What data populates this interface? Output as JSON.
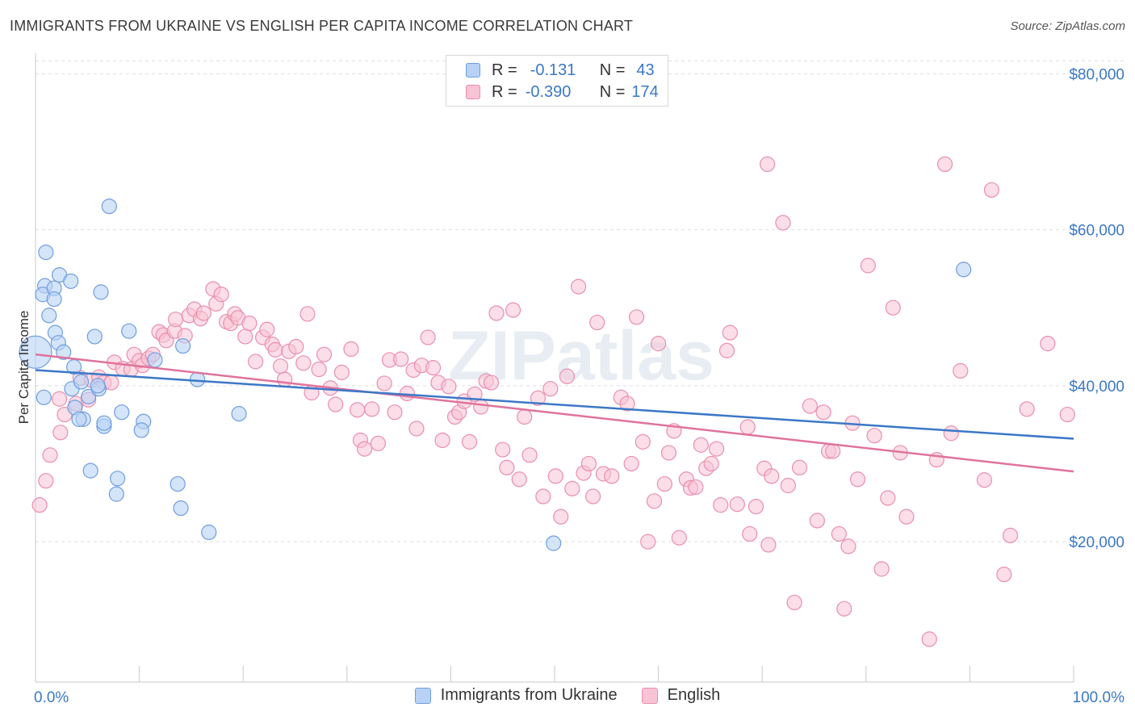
{
  "title": "IMMIGRANTS FROM UKRAINE VS ENGLISH PER CAPITA INCOME CORRELATION CHART",
  "source": "Source: ZipAtlas.com",
  "watermark": "ZIPatlas",
  "legend": {
    "r_label": "R =",
    "n_label": "N =",
    "rows": [
      {
        "name": "Immigrants from Ukraine",
        "r": "-0.131",
        "n": "43",
        "fill": "#b7d2f5",
        "stroke": "#6f9ee0"
      },
      {
        "name": "English",
        "r": "-0.390",
        "n": "174",
        "fill": "#f8c3d4",
        "stroke": "#ea8fae"
      }
    ]
  },
  "chart_data": {
    "type": "scatter",
    "title": "IMMIGRANTS FROM UKRAINE VS ENGLISH PER CAPITA INCOME CORRELATION CHART",
    "xlabel": "",
    "ylabel": "Per Capita Income",
    "xlim": [
      0,
      100
    ],
    "ylim": [
      2000,
      82000
    ],
    "x_tick_labels": [
      "0.0%",
      "100.0%"
    ],
    "y_ticks": [
      20000,
      40000,
      60000,
      80000
    ],
    "y_tick_labels": [
      "$20,000",
      "$40,000",
      "$60,000",
      "$80,000"
    ],
    "grid": true,
    "legend_position": "top-center",
    "colors": {
      "ukraine_fill": "#b7d2f5",
      "ukraine_stroke": "#6f9ee0",
      "ukraine_line": "#3b78c7",
      "english_fill": "#f8c3d4",
      "english_stroke": "#ea8fae",
      "english_line": "#e0739c",
      "tick_label": "#3b78c7"
    },
    "series": [
      {
        "name": "Immigrants from Ukraine",
        "trend": {
          "x": [
            0,
            100
          ],
          "y": [
            42000,
            33200
          ]
        },
        "points": [
          [
            0.0,
            44300
          ],
          [
            1.0,
            57100
          ],
          [
            0.9,
            52800
          ],
          [
            0.7,
            51700
          ],
          [
            1.8,
            52500
          ],
          [
            1.8,
            51100
          ],
          [
            2.3,
            54200
          ],
          [
            3.4,
            53400
          ],
          [
            1.3,
            49000
          ],
          [
            1.9,
            46800
          ],
          [
            2.2,
            45500
          ],
          [
            2.7,
            44300
          ],
          [
            3.7,
            42400
          ],
          [
            5.7,
            46300
          ],
          [
            6.3,
            52000
          ],
          [
            9.0,
            47000
          ],
          [
            14.2,
            45100
          ],
          [
            11.5,
            43300
          ],
          [
            7.1,
            63000
          ],
          [
            3.5,
            39600
          ],
          [
            4.4,
            40500
          ],
          [
            3.8,
            37200
          ],
          [
            4.6,
            35700
          ],
          [
            4.2,
            35700
          ],
          [
            5.1,
            38600
          ],
          [
            6.1,
            39600
          ],
          [
            6.0,
            40000
          ],
          [
            8.3,
            36600
          ],
          [
            6.6,
            34800
          ],
          [
            6.6,
            35200
          ],
          [
            10.4,
            35400
          ],
          [
            10.2,
            34300
          ],
          [
            15.6,
            40800
          ],
          [
            19.6,
            36400
          ],
          [
            5.3,
            29100
          ],
          [
            7.9,
            28100
          ],
          [
            7.8,
            26100
          ],
          [
            13.7,
            27400
          ],
          [
            14.0,
            24300
          ],
          [
            16.7,
            21200
          ],
          [
            49.9,
            19800
          ],
          [
            89.4,
            54900
          ],
          [
            0.8,
            38500
          ]
        ]
      },
      {
        "name": "English",
        "trend": {
          "x": [
            0,
            100
          ],
          "y": [
            44000,
            29000
          ]
        },
        "points": [
          [
            0.4,
            24700
          ],
          [
            1.0,
            27800
          ],
          [
            1.4,
            31100
          ],
          [
            2.3,
            38300
          ],
          [
            2.4,
            34000
          ],
          [
            2.8,
            36300
          ],
          [
            3.9,
            37700
          ],
          [
            4.3,
            41000
          ],
          [
            5.1,
            38200
          ],
          [
            5.4,
            40700
          ],
          [
            6.1,
            41100
          ],
          [
            6.6,
            40400
          ],
          [
            7.3,
            40400
          ],
          [
            7.6,
            43000
          ],
          [
            8.4,
            42200
          ],
          [
            9.2,
            42100
          ],
          [
            9.5,
            44000
          ],
          [
            10.0,
            43200
          ],
          [
            10.3,
            42600
          ],
          [
            10.9,
            43500
          ],
          [
            11.3,
            44000
          ],
          [
            11.9,
            46900
          ],
          [
            12.3,
            46500
          ],
          [
            12.6,
            45800
          ],
          [
            13.4,
            47000
          ],
          [
            13.5,
            48500
          ],
          [
            14.4,
            46400
          ],
          [
            14.8,
            49000
          ],
          [
            15.3,
            49800
          ],
          [
            15.9,
            48600
          ],
          [
            16.2,
            49300
          ],
          [
            17.1,
            52400
          ],
          [
            17.4,
            50500
          ],
          [
            17.9,
            51700
          ],
          [
            18.4,
            48200
          ],
          [
            18.8,
            48000
          ],
          [
            19.2,
            49200
          ],
          [
            19.5,
            48700
          ],
          [
            20.2,
            46300
          ],
          [
            20.6,
            48000
          ],
          [
            21.2,
            43100
          ],
          [
            21.9,
            46200
          ],
          [
            22.3,
            47200
          ],
          [
            22.8,
            45300
          ],
          [
            23.1,
            44600
          ],
          [
            23.6,
            42500
          ],
          [
            24.0,
            40800
          ],
          [
            24.4,
            44400
          ],
          [
            25.1,
            45000
          ],
          [
            25.8,
            42900
          ],
          [
            26.2,
            49200
          ],
          [
            26.6,
            39100
          ],
          [
            27.3,
            42100
          ],
          [
            27.8,
            44000
          ],
          [
            28.4,
            39700
          ],
          [
            28.9,
            37600
          ],
          [
            29.5,
            41700
          ],
          [
            30.4,
            44700
          ],
          [
            31.0,
            36900
          ],
          [
            31.3,
            33000
          ],
          [
            31.7,
            31900
          ],
          [
            32.4,
            37000
          ],
          [
            33.0,
            32600
          ],
          [
            33.6,
            40300
          ],
          [
            34.1,
            43300
          ],
          [
            34.6,
            36600
          ],
          [
            35.2,
            43400
          ],
          [
            35.8,
            39000
          ],
          [
            36.4,
            42000
          ],
          [
            36.7,
            34500
          ],
          [
            37.2,
            42600
          ],
          [
            37.8,
            46200
          ],
          [
            38.3,
            42300
          ],
          [
            38.8,
            40400
          ],
          [
            39.2,
            33000
          ],
          [
            39.8,
            39900
          ],
          [
            40.4,
            36000
          ],
          [
            40.8,
            36600
          ],
          [
            41.3,
            38000
          ],
          [
            41.8,
            32800
          ],
          [
            42.3,
            38900
          ],
          [
            42.9,
            37300
          ],
          [
            43.4,
            40600
          ],
          [
            43.9,
            40400
          ],
          [
            44.4,
            49300
          ],
          [
            45.0,
            31800
          ],
          [
            45.4,
            29500
          ],
          [
            46.0,
            49700
          ],
          [
            46.6,
            28000
          ],
          [
            47.1,
            36000
          ],
          [
            47.6,
            31100
          ],
          [
            48.4,
            38400
          ],
          [
            48.9,
            25800
          ],
          [
            49.6,
            39600
          ],
          [
            50.1,
            28400
          ],
          [
            50.6,
            23200
          ],
          [
            51.2,
            41200
          ],
          [
            51.7,
            26800
          ],
          [
            52.3,
            52700
          ],
          [
            52.8,
            28800
          ],
          [
            53.3,
            30000
          ],
          [
            53.7,
            25800
          ],
          [
            54.1,
            48100
          ],
          [
            54.7,
            28700
          ],
          [
            55.5,
            28400
          ],
          [
            56.4,
            38500
          ],
          [
            57.0,
            37700
          ],
          [
            57.4,
            30000
          ],
          [
            57.9,
            48800
          ],
          [
            58.5,
            32800
          ],
          [
            59.0,
            20000
          ],
          [
            59.6,
            25200
          ],
          [
            60.0,
            45400
          ],
          [
            60.6,
            27400
          ],
          [
            61.0,
            31400
          ],
          [
            61.5,
            34200
          ],
          [
            62.0,
            20500
          ],
          [
            62.7,
            28000
          ],
          [
            63.1,
            26900
          ],
          [
            63.6,
            27000
          ],
          [
            64.1,
            32400
          ],
          [
            64.6,
            29400
          ],
          [
            65.1,
            30000
          ],
          [
            65.6,
            31900
          ],
          [
            66.0,
            24700
          ],
          [
            66.6,
            44500
          ],
          [
            66.9,
            46800
          ],
          [
            67.6,
            24800
          ],
          [
            68.6,
            34700
          ],
          [
            68.8,
            21000
          ],
          [
            69.4,
            24500
          ],
          [
            70.2,
            29400
          ],
          [
            70.6,
            19600
          ],
          [
            70.9,
            28400
          ],
          [
            70.5,
            68400
          ],
          [
            72.0,
            60900
          ],
          [
            72.5,
            27200
          ],
          [
            73.1,
            12200
          ],
          [
            73.6,
            29500
          ],
          [
            74.6,
            37400
          ],
          [
            75.3,
            22700
          ],
          [
            75.9,
            36600
          ],
          [
            76.4,
            31600
          ],
          [
            76.8,
            31600
          ],
          [
            77.4,
            21000
          ],
          [
            77.9,
            11400
          ],
          [
            78.3,
            19400
          ],
          [
            78.7,
            35200
          ],
          [
            79.2,
            28000
          ],
          [
            80.2,
            55400
          ],
          [
            80.8,
            33600
          ],
          [
            81.5,
            16500
          ],
          [
            82.1,
            25600
          ],
          [
            82.6,
            50000
          ],
          [
            83.3,
            31400
          ],
          [
            83.9,
            23200
          ],
          [
            86.1,
            7500
          ],
          [
            86.8,
            30500
          ],
          [
            87.6,
            68400
          ],
          [
            88.2,
            33900
          ],
          [
            89.1,
            41900
          ],
          [
            91.4,
            27900
          ],
          [
            92.1,
            65100
          ],
          [
            93.3,
            15800
          ],
          [
            93.9,
            20800
          ],
          [
            95.5,
            37000
          ],
          [
            97.5,
            45400
          ],
          [
            99.4,
            36300
          ]
        ]
      }
    ]
  }
}
